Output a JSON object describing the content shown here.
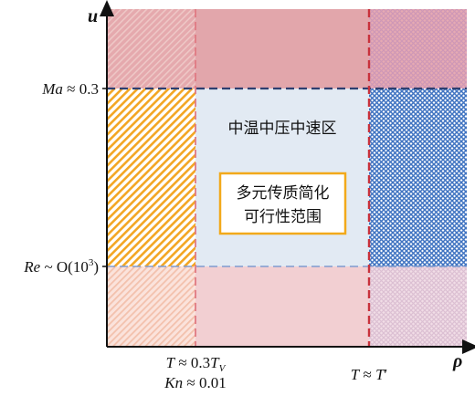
{
  "axes": {
    "y_label": "u",
    "x_label": "ρ"
  },
  "thresholds": {
    "ma": {
      "var": "Ma",
      "rel": " ≈ 0.3"
    },
    "re": {
      "var": "Re",
      "rel": " ~ O(10",
      "exp": "3",
      "close": ")"
    },
    "t_low": {
      "var": "T",
      "rel": " ≈ 0.3",
      "var2": "T",
      "sub": "V"
    },
    "kn": {
      "var": "Kn",
      "rel": " ≈ 0.01"
    },
    "t_high": {
      "var": "T",
      "rel": " ≈ ",
      "var2": "T",
      "prime": "′"
    }
  },
  "regions": {
    "center_label": "中温中压中速区",
    "box_line1": "多元传质简化",
    "box_line2": "可行性范围"
  },
  "colors": {
    "red_band": "#e2a6ab",
    "pink_band": "#f2cfd2",
    "center": "#e2eaf3",
    "orange_hatch": "#f3a623",
    "blue_cross": "#3f73c1",
    "red_dash": "#c8323c",
    "navy_dash": "#2e3f70",
    "box_border": "#f2a91a"
  }
}
